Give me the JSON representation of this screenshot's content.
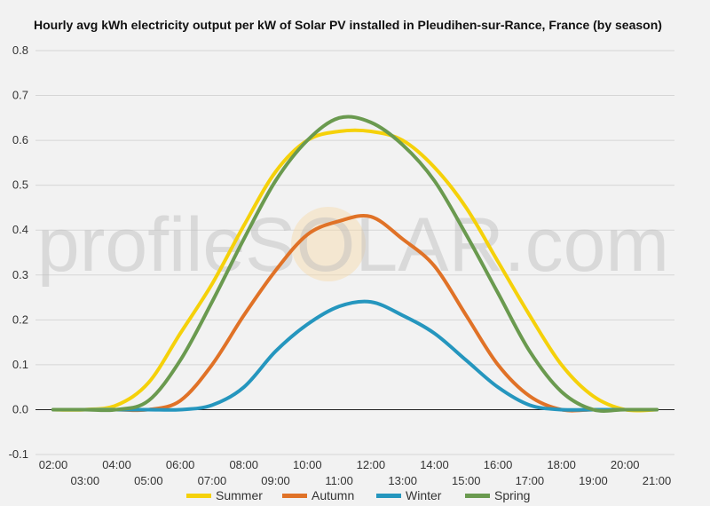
{
  "chart_data": {
    "type": "line",
    "title": "Hourly avg kWh electricity output per kW of Solar PV installed in Pleudihen-sur-Rance, France (by season)",
    "xlabel": "",
    "ylabel": "",
    "ylim": [
      -0.1,
      0.8
    ],
    "yticks": [
      "-0.1",
      "0.0",
      "0.1",
      "0.2",
      "0.3",
      "0.4",
      "0.5",
      "0.6",
      "0.7",
      "0.8"
    ],
    "x": [
      "02:00",
      "03:00",
      "04:00",
      "05:00",
      "06:00",
      "07:00",
      "08:00",
      "09:00",
      "10:00",
      "11:00",
      "12:00",
      "13:00",
      "14:00",
      "15:00",
      "16:00",
      "17:00",
      "18:00",
      "19:00",
      "20:00",
      "21:00"
    ],
    "grid": true,
    "legend": "bottom",
    "watermark": "profileSOLAR.com",
    "series": [
      {
        "name": "Summer",
        "color": "#f5d10a",
        "values": [
          0.0,
          0.0,
          0.01,
          0.06,
          0.17,
          0.28,
          0.41,
          0.53,
          0.6,
          0.62,
          0.62,
          0.6,
          0.54,
          0.45,
          0.33,
          0.21,
          0.1,
          0.03,
          0.0,
          0.0
        ]
      },
      {
        "name": "Autumn",
        "color": "#e07227",
        "values": [
          0.0,
          0.0,
          0.0,
          0.0,
          0.02,
          0.1,
          0.21,
          0.31,
          0.39,
          0.42,
          0.43,
          0.38,
          0.32,
          0.21,
          0.1,
          0.03,
          0.0,
          0.0,
          0.0,
          0.0
        ]
      },
      {
        "name": "Winter",
        "color": "#2596be",
        "values": [
          0.0,
          0.0,
          0.0,
          0.0,
          0.0,
          0.01,
          0.05,
          0.13,
          0.19,
          0.23,
          0.24,
          0.21,
          0.17,
          0.11,
          0.05,
          0.01,
          0.0,
          0.0,
          0.0,
          0.0
        ]
      },
      {
        "name": "Spring",
        "color": "#6a9a4f",
        "values": [
          0.0,
          0.0,
          0.0,
          0.02,
          0.11,
          0.24,
          0.38,
          0.51,
          0.6,
          0.65,
          0.64,
          0.59,
          0.51,
          0.39,
          0.26,
          0.13,
          0.04,
          0.0,
          0.0,
          0.0
        ]
      }
    ]
  }
}
